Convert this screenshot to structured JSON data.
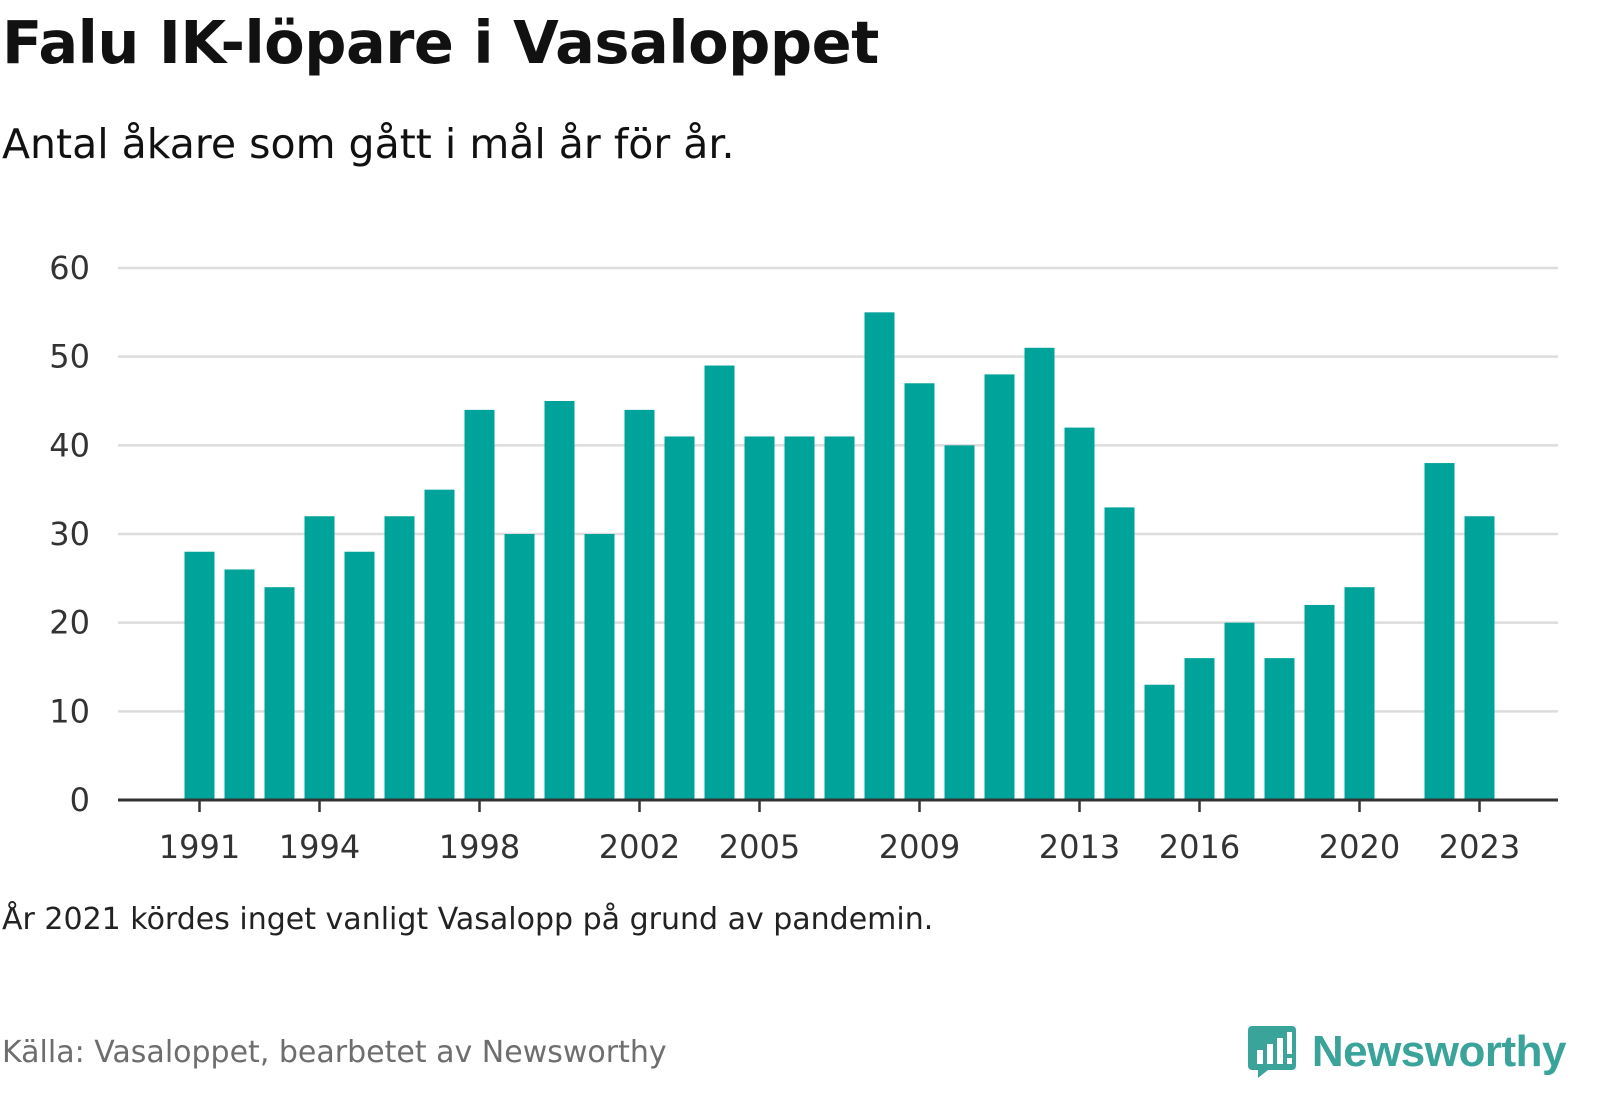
{
  "header": {
    "title": "Falu IK-löpare i Vasaloppet",
    "subtitle": "Antal åkare som gått i mål år för år."
  },
  "footer": {
    "note": "År 2021 kördes inget vanligt Vasalopp på grund av pandemin.",
    "source": "Källa: Vasaloppet, bearbetet av Newsworthy",
    "brand_name": "Newsworthy",
    "brand_icon": "bar-chart-speech-bubble-icon"
  },
  "colors": {
    "bar": "#00a39a",
    "grid": "#dddddd",
    "axis": "#333333",
    "brand": "#3aa39a"
  },
  "chart_data": {
    "type": "bar",
    "categories": [
      1991,
      1992,
      1993,
      1994,
      1995,
      1996,
      1997,
      1998,
      1999,
      2000,
      2001,
      2002,
      2003,
      2004,
      2005,
      2006,
      2007,
      2008,
      2009,
      2010,
      2011,
      2012,
      2013,
      2014,
      2015,
      2016,
      2017,
      2018,
      2019,
      2020,
      2021,
      2022,
      2023
    ],
    "values": [
      28,
      26,
      24,
      32,
      28,
      32,
      35,
      44,
      30,
      45,
      30,
      44,
      41,
      49,
      41,
      41,
      41,
      55,
      47,
      40,
      48,
      51,
      42,
      33,
      13,
      16,
      20,
      16,
      22,
      24,
      null,
      38,
      32
    ],
    "x_tick_labels": [
      "1991",
      "1994",
      "1998",
      "2002",
      "2005",
      "2009",
      "2013",
      "2016",
      "2020",
      "2023"
    ],
    "y_ticks": [
      0,
      10,
      20,
      30,
      40,
      50,
      60
    ],
    "ylim": [
      0,
      60
    ],
    "grid": true,
    "legend": "none"
  }
}
